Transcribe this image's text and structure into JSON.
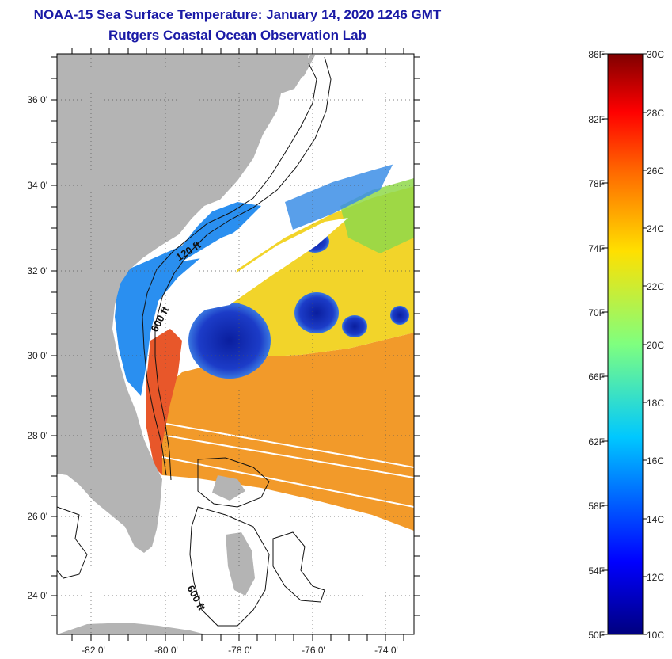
{
  "title": {
    "line1": "NOAA-15 Sea Surface Temperature:  January 14, 2020 1246 GMT",
    "line2": "Rutgers Coastal Ocean Observation Lab"
  },
  "map": {
    "lat_labels": [
      "36 0'",
      "34 0'",
      "32 0'",
      "30 0'",
      "28 0'",
      "26 0'",
      "24 0'"
    ],
    "lon_labels": [
      "-82 0'",
      "-80 0'",
      "-78 0'",
      "-76 0'",
      "-74 0'"
    ],
    "contour_labels": [
      "120 ft",
      "600 ft",
      "600 ft"
    ],
    "land_color": "#b4b4b4",
    "ocean_nodata_color": "#ffffff"
  },
  "colorbar": {
    "fahrenheit_labels": [
      "86F",
      "82F",
      "78F",
      "74F",
      "70F",
      "66F",
      "62F",
      "58F",
      "54F",
      "50F"
    ],
    "celsius_labels": [
      "30C",
      "28C",
      "26C",
      "24C",
      "22C",
      "20C",
      "18C",
      "16C",
      "14C",
      "12C",
      "10C"
    ],
    "colormap": "jet",
    "range_celsius": [
      10,
      30
    ]
  }
}
